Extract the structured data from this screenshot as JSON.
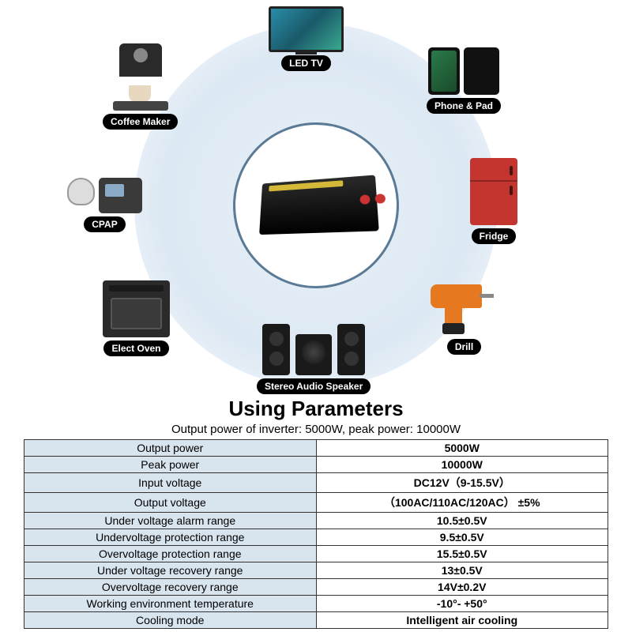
{
  "devices": {
    "tv": {
      "label": "LED TV"
    },
    "phone": {
      "label": "Phone & Pad"
    },
    "fridge": {
      "label": "Fridge"
    },
    "drill": {
      "label": "Drill"
    },
    "speaker": {
      "label": "Stereo Audio Speaker"
    },
    "oven": {
      "label": "Elect Oven"
    },
    "cpap": {
      "label": "CPAP"
    },
    "coffee": {
      "label": "Coffee Maker"
    }
  },
  "section": {
    "title": "Using Parameters",
    "subtitle": "Output power of inverter: 5000W, peak power: 10000W"
  },
  "table": {
    "header_bg": "#d8e4ee",
    "border_color": "#333333",
    "rows": [
      {
        "param": "Output power",
        "value": "5000W"
      },
      {
        "param": "Peak power",
        "value": "10000W"
      },
      {
        "param": "Input voltage",
        "value": "DC12V（9-15.5V）"
      },
      {
        "param": "Output voltage",
        "value": "（100AC/110AC/120AC） ±5%"
      },
      {
        "param": "Under voltage alarm range",
        "value": "10.5±0.5V"
      },
      {
        "param": "Undervoltage protection range",
        "value": "9.5±0.5V"
      },
      {
        "param": "Overvoltage protection range",
        "value": "15.5±0.5V"
      },
      {
        "param": "Under voltage recovery range",
        "value": "13±0.5V"
      },
      {
        "param": "Overvoltage recovery range",
        "value": "14V±0.2V"
      },
      {
        "param": "Working environment temperature",
        "value": "-10°- +50°"
      },
      {
        "param": "Cooling mode",
        "value": "Intelligent air cooling"
      }
    ]
  }
}
